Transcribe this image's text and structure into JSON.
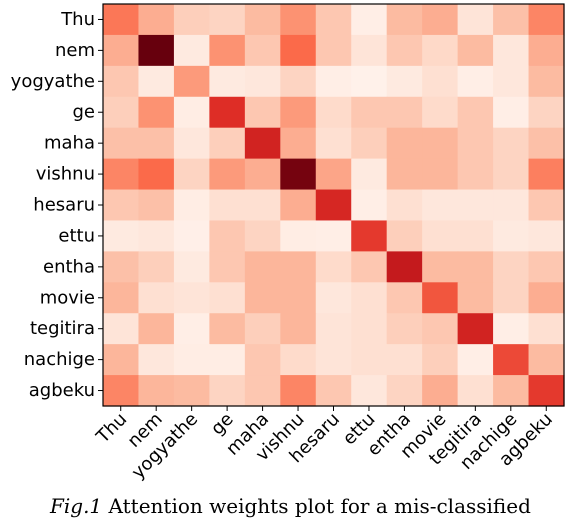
{
  "chart_data": {
    "type": "heatmap",
    "colormap": "Reds",
    "x_labels": [
      "Thu",
      "nem",
      "yogyathe",
      "ge",
      "maha",
      "vishnu",
      "hesaru",
      "ettu",
      "entha",
      "movie",
      "tegitira",
      "nachige",
      "agbeku"
    ],
    "y_labels": [
      "Thu",
      "nem",
      "yogyathe",
      "ge",
      "maha",
      "vishnu",
      "hesaru",
      "ettu",
      "entha",
      "movie",
      "tegitira",
      "nachige",
      "agbeku"
    ],
    "values": [
      [
        0.55,
        0.35,
        0.22,
        0.2,
        0.3,
        0.45,
        0.25,
        0.05,
        0.3,
        0.35,
        0.12,
        0.28,
        0.5
      ],
      [
        0.35,
        1.0,
        0.08,
        0.45,
        0.25,
        0.6,
        0.25,
        0.12,
        0.25,
        0.18,
        0.3,
        0.1,
        0.35
      ],
      [
        0.25,
        0.08,
        0.42,
        0.08,
        0.1,
        0.2,
        0.05,
        0.03,
        0.08,
        0.15,
        0.05,
        0.1,
        0.3
      ],
      [
        0.22,
        0.45,
        0.06,
        0.75,
        0.25,
        0.42,
        0.17,
        0.25,
        0.25,
        0.17,
        0.25,
        0.05,
        0.2
      ],
      [
        0.28,
        0.28,
        0.1,
        0.22,
        0.8,
        0.35,
        0.15,
        0.22,
        0.32,
        0.32,
        0.25,
        0.2,
        0.28
      ],
      [
        0.5,
        0.6,
        0.2,
        0.42,
        0.35,
        0.98,
        0.38,
        0.08,
        0.32,
        0.32,
        0.25,
        0.2,
        0.52
      ],
      [
        0.25,
        0.28,
        0.06,
        0.15,
        0.15,
        0.35,
        0.78,
        0.05,
        0.15,
        0.1,
        0.1,
        0.1,
        0.25
      ],
      [
        0.08,
        0.1,
        0.04,
        0.25,
        0.2,
        0.06,
        0.05,
        0.72,
        0.22,
        0.15,
        0.15,
        0.08,
        0.1
      ],
      [
        0.28,
        0.22,
        0.08,
        0.25,
        0.32,
        0.32,
        0.17,
        0.25,
        0.85,
        0.3,
        0.3,
        0.2,
        0.25
      ],
      [
        0.32,
        0.15,
        0.12,
        0.15,
        0.32,
        0.32,
        0.1,
        0.15,
        0.25,
        0.65,
        0.3,
        0.2,
        0.35
      ],
      [
        0.12,
        0.32,
        0.05,
        0.3,
        0.22,
        0.32,
        0.12,
        0.15,
        0.22,
        0.25,
        0.8,
        0.05,
        0.15
      ],
      [
        0.32,
        0.1,
        0.06,
        0.06,
        0.25,
        0.17,
        0.12,
        0.15,
        0.15,
        0.22,
        0.05,
        0.68,
        0.3
      ],
      [
        0.5,
        0.32,
        0.3,
        0.2,
        0.25,
        0.5,
        0.25,
        0.1,
        0.2,
        0.35,
        0.15,
        0.3,
        0.72
      ]
    ]
  },
  "caption": {
    "label": "Fig.1",
    "text": "Attention weights plot for a mis-classified"
  }
}
